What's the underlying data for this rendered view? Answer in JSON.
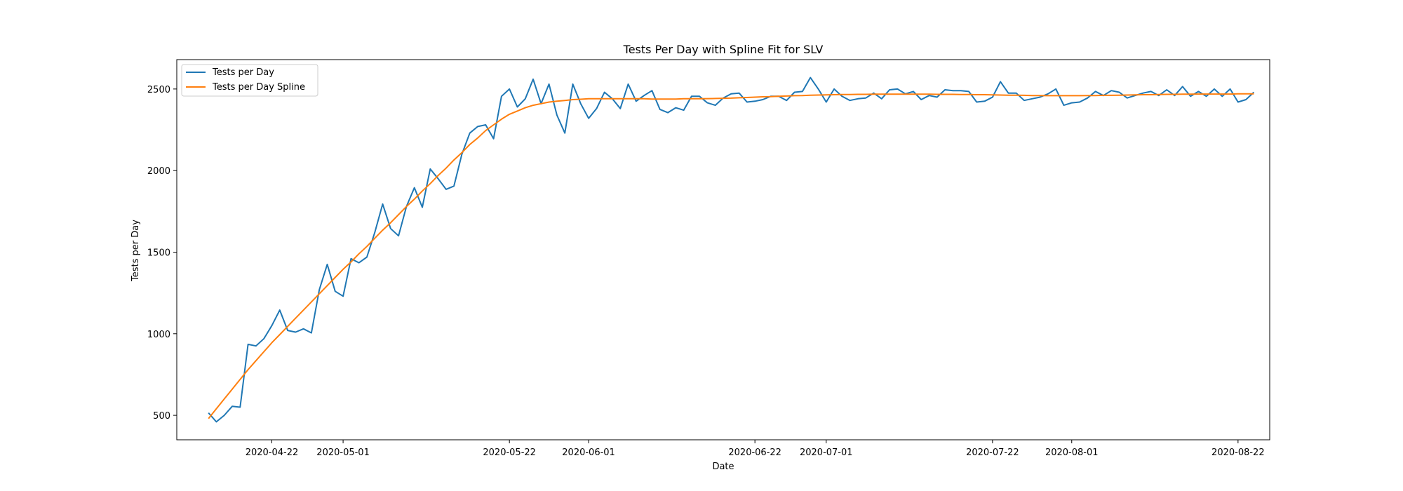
{
  "chart_data": {
    "type": "line",
    "title": "Tests Per Day with Spline Fit for SLV",
    "xlabel": "Date",
    "ylabel": "Tests per Day",
    "x_start": "2020-04-14",
    "xlim": [
      "2020-04-10",
      "2020-08-26"
    ],
    "ylim": [
      350,
      2680
    ],
    "x_ticks": [
      "2020-04-22",
      "2020-05-01",
      "2020-05-22",
      "2020-06-01",
      "2020-06-22",
      "2020-07-01",
      "2020-07-22",
      "2020-08-01",
      "2020-08-22"
    ],
    "y_ticks": [
      500,
      1000,
      1500,
      2000,
      2500
    ],
    "legend_position": "top-left",
    "grid": false,
    "colors": {
      "tests": "#1f77b4",
      "spline": "#ff7f0e"
    },
    "series": [
      {
        "name": "Tests per Day",
        "values": [
          515,
          460,
          500,
          555,
          550,
          935,
          925,
          970,
          1050,
          1145,
          1020,
          1010,
          1030,
          1005,
          1270,
          1425,
          1260,
          1230,
          1460,
          1435,
          1470,
          1620,
          1795,
          1645,
          1600,
          1780,
          1895,
          1775,
          2010,
          1950,
          1885,
          1905,
          2100,
          2230,
          2270,
          2280,
          2195,
          2455,
          2500,
          2390,
          2440,
          2560,
          2410,
          2530,
          2340,
          2230,
          2530,
          2410,
          2320,
          2380,
          2480,
          2440,
          2380,
          2530,
          2425,
          2460,
          2490,
          2375,
          2355,
          2385,
          2370,
          2455,
          2455,
          2415,
          2400,
          2445,
          2470,
          2475,
          2420,
          2425,
          2435,
          2455,
          2455,
          2430,
          2480,
          2485,
          2570,
          2500,
          2420,
          2500,
          2455,
          2430,
          2440,
          2445,
          2475,
          2440,
          2495,
          2500,
          2470,
          2485,
          2435,
          2460,
          2450,
          2495,
          2490,
          2490,
          2485,
          2420,
          2425,
          2450,
          2545,
          2475,
          2475,
          2430,
          2440,
          2450,
          2470,
          2500,
          2400,
          2415,
          2420,
          2445,
          2485,
          2460,
          2490,
          2480,
          2445,
          2460,
          2475,
          2485,
          2460,
          2495,
          2460,
          2515,
          2455,
          2485,
          2455,
          2500,
          2455,
          2500,
          2420,
          2435,
          2480
        ]
      },
      {
        "name": "Tests per Day Spline",
        "values": [
          480,
          540,
          600,
          660,
          720,
          780,
          835,
          890,
          945,
          995,
          1045,
          1095,
          1145,
          1195,
          1245,
          1295,
          1345,
          1395,
          1440,
          1490,
          1535,
          1585,
          1635,
          1680,
          1730,
          1780,
          1825,
          1875,
          1920,
          1970,
          2015,
          2065,
          2110,
          2160,
          2200,
          2245,
          2280,
          2315,
          2345,
          2365,
          2385,
          2400,
          2410,
          2420,
          2425,
          2430,
          2435,
          2437,
          2440,
          2440,
          2440,
          2440,
          2440,
          2440,
          2440,
          2440,
          2438,
          2438,
          2438,
          2438,
          2440,
          2440,
          2440,
          2441,
          2442,
          2443,
          2444,
          2446,
          2448,
          2450,
          2452,
          2453,
          2455,
          2457,
          2459,
          2460,
          2462,
          2463,
          2464,
          2465,
          2466,
          2466,
          2467,
          2467,
          2468,
          2468,
          2468,
          2468,
          2468,
          2468,
          2468,
          2468,
          2467,
          2467,
          2467,
          2466,
          2466,
          2465,
          2465,
          2464,
          2463,
          2462,
          2462,
          2461,
          2460,
          2460,
          2459,
          2459,
          2459,
          2459,
          2459,
          2460,
          2460,
          2461,
          2461,
          2462,
          2463,
          2464,
          2465,
          2465,
          2466,
          2467,
          2467,
          2468,
          2468,
          2469,
          2469,
          2469,
          2469,
          2469,
          2470,
          2470,
          2470
        ]
      }
    ]
  }
}
